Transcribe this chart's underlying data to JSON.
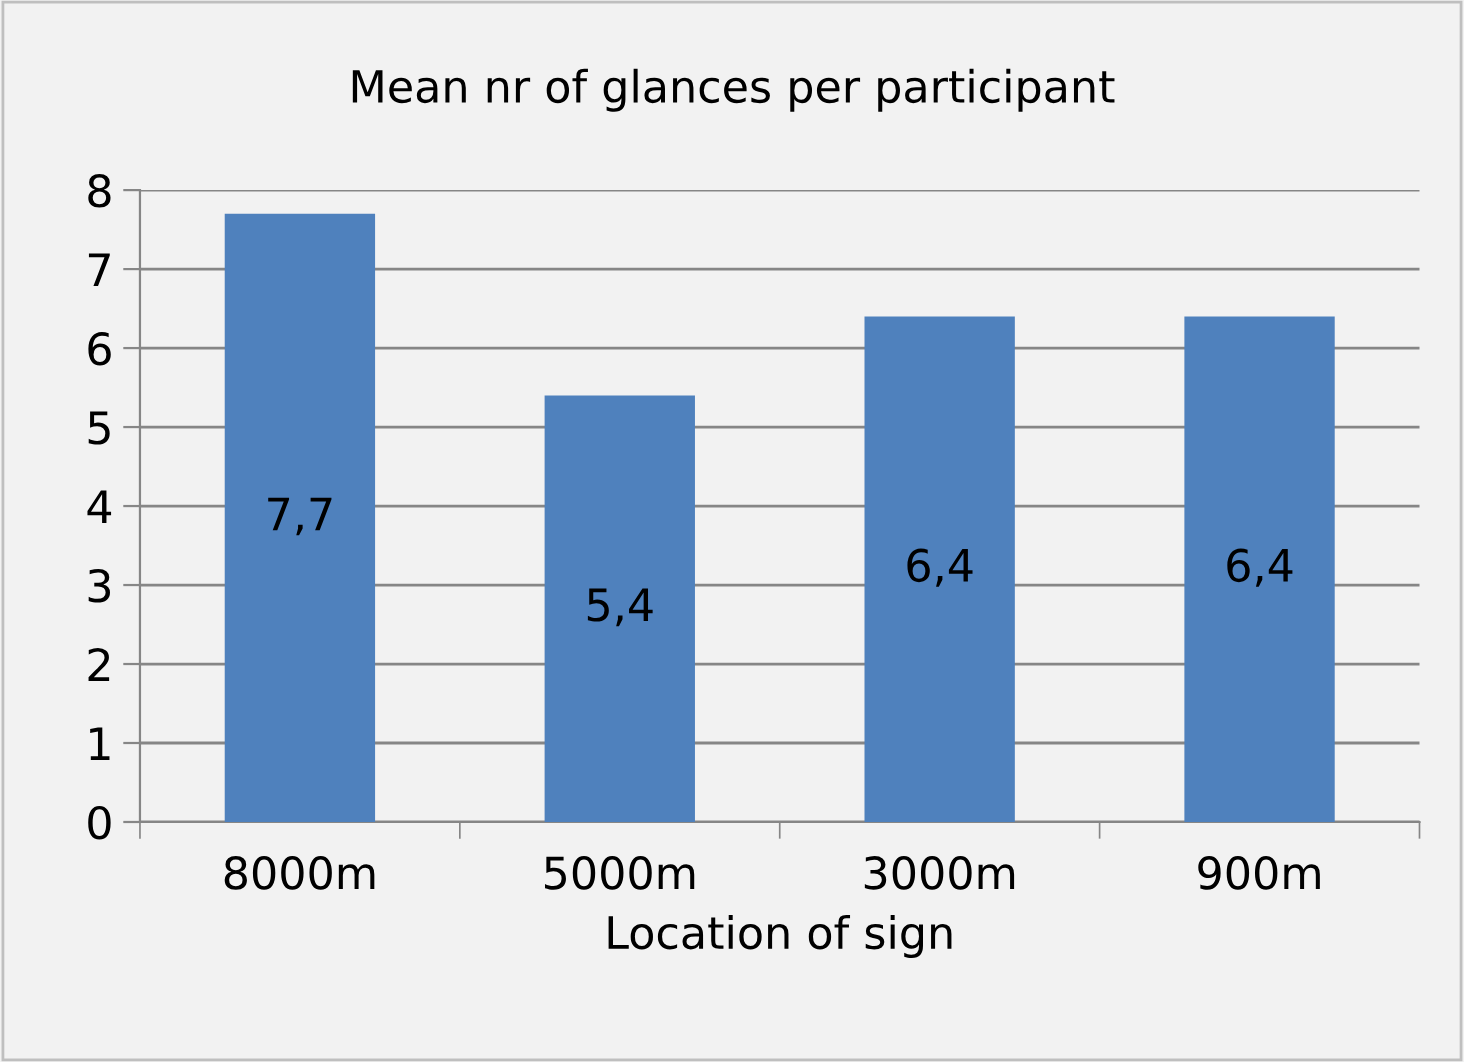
{
  "chart_data": {
    "type": "bar",
    "title": "Mean nr of glances per participant",
    "xlabel": "Location of sign",
    "categories": [
      "8000m",
      "5000m",
      "3000m",
      "900m"
    ],
    "values": [
      7.7,
      5.4,
      6.4,
      6.4
    ],
    "value_labels": [
      "7,7",
      "5,4",
      "6,4",
      "6,4"
    ],
    "color": "#4f81bd",
    "ylim": [
      0,
      8
    ],
    "yticks": [
      0,
      1,
      2,
      3,
      4,
      5,
      6,
      7,
      8
    ],
    "grid": "y",
    "legend": false
  }
}
